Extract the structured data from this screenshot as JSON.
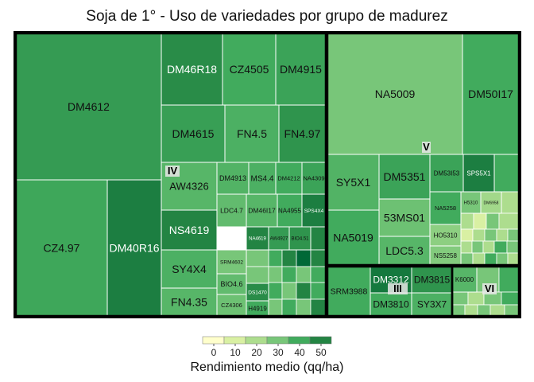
{
  "chart_data": {
    "type": "treemap",
    "title": "Soja de 1° - Uso de variedades por grupo de madurez",
    "legend": {
      "title": "Rendimiento medio (qq/ha)",
      "ticks": [
        0,
        10,
        20,
        30,
        40,
        50
      ],
      "colors": [
        "#ffffcc",
        "#d9f0a3",
        "#addd8e",
        "#78c679",
        "#41ab5d",
        "#238443",
        "#006837"
      ]
    },
    "groups": [
      {
        "name": "IV",
        "tiles": [
          {
            "label": "DM4612",
            "value": 44.0
          },
          {
            "label": "CZ4.97",
            "value": 41.0
          },
          {
            "label": "DM40R16",
            "value": 52.0
          },
          {
            "label": "DM46R18",
            "value": 48.0
          },
          {
            "label": "CZ4505",
            "value": 40.0
          },
          {
            "label": "DM4915",
            "value": 42.0
          },
          {
            "label": "DM4615",
            "value": 43.0
          },
          {
            "label": "FN4.5",
            "value": 38.0
          },
          {
            "label": "FN4.97",
            "value": 46.0
          },
          {
            "label": "AW4326",
            "value": 36.0
          },
          {
            "label": "DM4913",
            "value": 37.0
          },
          {
            "label": "MS4.4",
            "value": 38.0
          },
          {
            "label": "DM4212",
            "value": 40.0
          },
          {
            "label": "NA4309",
            "value": 42.0
          },
          {
            "label": "NS4619",
            "value": 50.0
          },
          {
            "label": "LDC4.7",
            "value": 34.0
          },
          {
            "label": "DM46I17",
            "value": 36.0
          },
          {
            "label": "NA4955",
            "value": 40.0
          },
          {
            "label": "SPS4X4",
            "value": 52.0
          },
          {
            "label": "NA4619",
            "value": 50.0
          },
          {
            "label": "AW4927",
            "value": 44.0
          },
          {
            "label": "BIO4.51",
            "value": 46.0
          },
          {
            "label": "SY4X4",
            "value": 38.0
          },
          {
            "label": "SRM4602",
            "value": 30.0
          },
          {
            "label": "BIO4.6",
            "value": 34.0
          },
          {
            "label": "FN4.35",
            "value": 36.0
          },
          {
            "label": "DS1470",
            "value": 48.0
          },
          {
            "label": "CZ4306",
            "value": 32.0
          },
          {
            "label": "H4919",
            "value": 40.0
          }
        ]
      },
      {
        "name": "V",
        "tiles": [
          {
            "label": "NA5009",
            "value": 30.0
          },
          {
            "label": "DM50I17",
            "value": 40.0
          },
          {
            "label": "SY5X1",
            "value": 37.0
          },
          {
            "label": "DM5351",
            "value": 42.0
          },
          {
            "label": "DM53I53",
            "value": 42.0
          },
          {
            "label": "SPS5X1",
            "value": 52.0
          },
          {
            "label": "NA5258",
            "value": 40.0
          },
          {
            "label": "H5310",
            "value": 30.0
          },
          {
            "label": "DM6958",
            "value": 22.0
          },
          {
            "label": "53MS01",
            "value": 32.0
          },
          {
            "label": "NA5019",
            "value": 40.0
          },
          {
            "label": "HO5310",
            "value": 26.0
          },
          {
            "label": "LDC5.3",
            "value": 36.0
          },
          {
            "label": "NS5258",
            "value": 28.0
          }
        ]
      },
      {
        "name": "III",
        "tiles": [
          {
            "label": "SRM3988",
            "value": 40.0
          },
          {
            "label": "DM3312",
            "value": 54.0
          },
          {
            "label": "DM3815",
            "value": 46.0
          },
          {
            "label": "DM3810",
            "value": 40.0
          },
          {
            "label": "SY3X7",
            "value": 38.0
          }
        ]
      },
      {
        "name": "VI",
        "tiles": [
          {
            "label": "K6000",
            "value": 36.0
          }
        ]
      }
    ]
  }
}
